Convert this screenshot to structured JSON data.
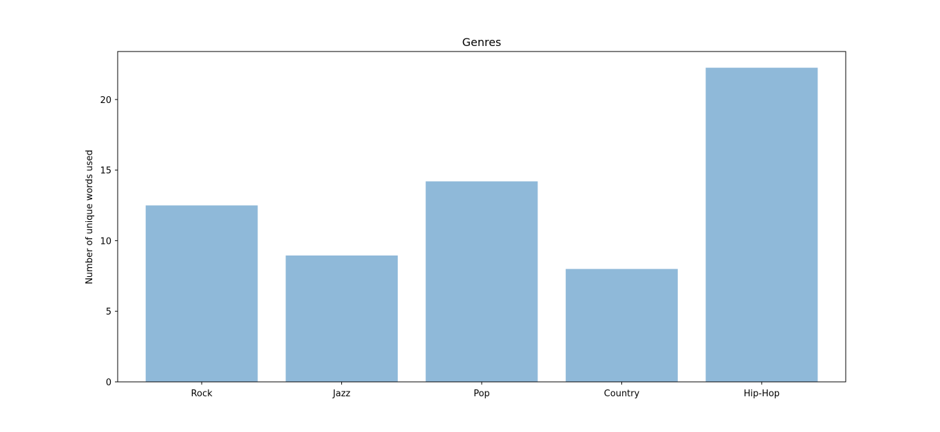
{
  "chart_data": {
    "type": "bar",
    "title": "Genres",
    "xlabel": "",
    "ylabel": "Number of unique words used",
    "categories": [
      "Rock",
      "Jazz",
      "Pop",
      "Country",
      "Hip-Hop"
    ],
    "values": [
      12.5,
      8.95,
      14.2,
      8.0,
      22.25
    ],
    "ylim": [
      0,
      23.4
    ],
    "yticks": [
      0,
      5,
      10,
      15,
      20
    ],
    "grid": false,
    "bar_color": "#8fb9d9",
    "axis_color": "#000000"
  }
}
